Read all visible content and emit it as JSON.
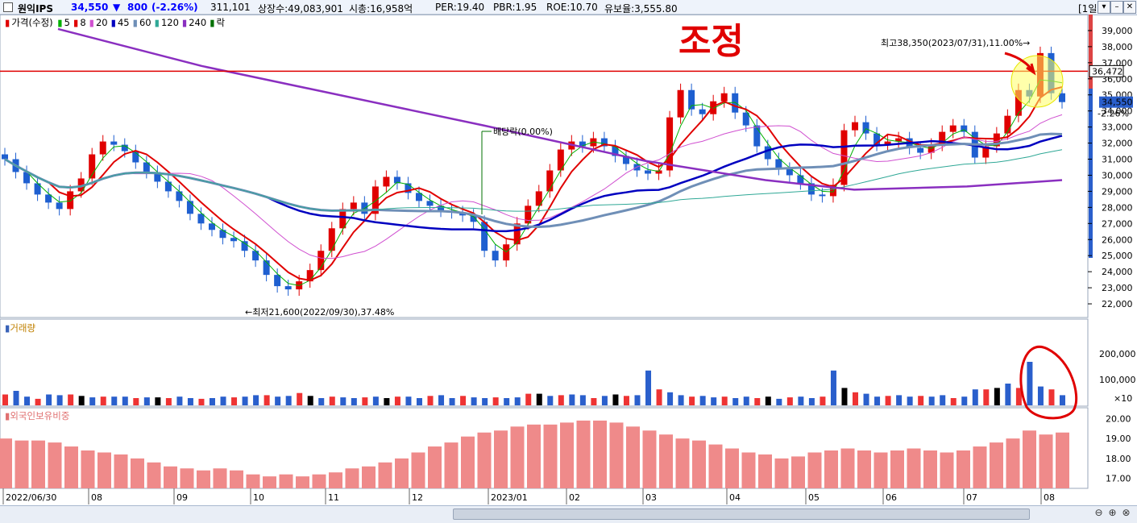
{
  "header": {
    "stock_name": "원익IPS",
    "price": "34,550",
    "change_arrow": "▼",
    "change": "800",
    "change_pct": "(-2.26%)",
    "volume": "311,101",
    "listed": "상장수:49,083,901",
    "mktcap": "시총:16,958억",
    "per": "PER:19.40",
    "pbr": "PBR:1.95",
    "roe": "ROE:10.70",
    "reserve": "유보율:3,555.80",
    "period_button": "[1일]",
    "window_buttons": [
      "▾",
      "–",
      "✕"
    ],
    "colors": {
      "down": "#0000ff",
      "up": "#e00000"
    }
  },
  "legend": {
    "price_label": "가격(수정)",
    "items": [
      {
        "label": "5",
        "color": "#00b000"
      },
      {
        "label": "8",
        "color": "#e00000"
      },
      {
        "label": "20",
        "color": "#d050d0"
      },
      {
        "label": "45",
        "color": "#0000c0"
      },
      {
        "label": "60",
        "color": "#6f8fb7"
      },
      {
        "label": "120",
        "color": "#2fa896"
      },
      {
        "label": "240",
        "color": "#8a2fc0"
      },
      {
        "label": "락",
        "color": "#007000"
      }
    ]
  },
  "annotations": {
    "handwritten": "조정",
    "high_label": "최고38,350(2023/07/31),11.00%→",
    "low_label": "←최저21,600(2022/09/30),37.48%",
    "dividend_label": "배당락(0.00%)",
    "crosshair_value": "36,472",
    "last_price": "34,550",
    "last_change": "-2.26%"
  },
  "volume_pane": {
    "title": "거래량",
    "unit": "×10",
    "ticks": [
      "200,000",
      "100,000"
    ]
  },
  "foreign_pane": {
    "title": "외국인보유비중",
    "ticks": [
      "20.00",
      "19.00",
      "18.00",
      "17.00"
    ]
  },
  "chart_data": {
    "type": "candlestick",
    "x_labels": [
      "2022/06/30",
      "08",
      "09",
      "10",
      "11",
      "12",
      "2023/01",
      "02",
      "03",
      "04",
      "05",
      "06",
      "07",
      "08"
    ],
    "y_ticks": [
      22000,
      23000,
      24000,
      25000,
      26000,
      27000,
      28000,
      29000,
      30000,
      31000,
      32000,
      33000,
      34000,
      35000,
      36000,
      37000,
      38000,
      39000
    ],
    "ylim": [
      21200,
      40000
    ],
    "closes": [
      31000,
      30200,
      29500,
      28800,
      28300,
      27900,
      29000,
      29800,
      31300,
      32100,
      31900,
      31500,
      30800,
      30200,
      29600,
      29000,
      28400,
      27600,
      27000,
      26600,
      26100,
      25900,
      25300,
      24700,
      23800,
      23100,
      22900,
      23400,
      24100,
      25300,
      26700,
      27900,
      28300,
      27600,
      29300,
      29900,
      29500,
      28900,
      28400,
      28100,
      27800,
      27700,
      27500,
      27100,
      25300,
      24700,
      25700,
      27000,
      28100,
      29000,
      30300,
      31600,
      32100,
      31800,
      32300,
      31800,
      31200,
      30700,
      30300,
      30100,
      30300,
      33600,
      35300,
      34100,
      33800,
      34600,
      35100,
      33900,
      33100,
      31800,
      31000,
      30400,
      30000,
      29500,
      28800,
      28700,
      29400,
      32800,
      33300,
      32600,
      31900,
      32100,
      32300,
      31700,
      31400,
      31900,
      32700,
      33100,
      32700,
      31100,
      31800,
      32600,
      33700,
      35300,
      34900,
      37600,
      35100,
      34550
    ],
    "volume_bars": [
      [
        1,
        15
      ],
      [
        2,
        20
      ],
      [
        3,
        12
      ],
      [
        4,
        9
      ],
      [
        5,
        15
      ],
      [
        6,
        14
      ],
      [
        7,
        15
      ],
      [
        8,
        13
      ],
      [
        9,
        11
      ],
      [
        10,
        12
      ],
      [
        11,
        12
      ],
      [
        12,
        12
      ],
      [
        13,
        10
      ],
      [
        14,
        11
      ],
      [
        15,
        11
      ],
      [
        16,
        10
      ],
      [
        17,
        12
      ],
      [
        18,
        10
      ],
      [
        19,
        9
      ],
      [
        20,
        10
      ],
      [
        21,
        12
      ],
      [
        22,
        11
      ],
      [
        23,
        12
      ],
      [
        24,
        14
      ],
      [
        25,
        14
      ],
      [
        26,
        12
      ],
      [
        27,
        13
      ],
      [
        28,
        17
      ],
      [
        29,
        13
      ],
      [
        30,
        10
      ],
      [
        31,
        12
      ],
      [
        32,
        11
      ],
      [
        33,
        10
      ],
      [
        34,
        11
      ],
      [
        35,
        12
      ],
      [
        36,
        10
      ],
      [
        37,
        12
      ],
      [
        38,
        12
      ],
      [
        39,
        10
      ],
      [
        40,
        13
      ],
      [
        41,
        14
      ],
      [
        42,
        10
      ],
      [
        43,
        13
      ],
      [
        44,
        11
      ],
      [
        45,
        10
      ],
      [
        46,
        11
      ],
      [
        47,
        10
      ],
      [
        48,
        11
      ],
      [
        49,
        16
      ],
      [
        50,
        16
      ],
      [
        51,
        13
      ],
      [
        52,
        14
      ],
      [
        53,
        15
      ],
      [
        54,
        14
      ],
      [
        55,
        10
      ],
      [
        56,
        13
      ],
      [
        57,
        15
      ],
      [
        58,
        13
      ],
      [
        59,
        14
      ],
      [
        60,
        48
      ],
      [
        61,
        22
      ],
      [
        62,
        18
      ],
      [
        63,
        14
      ],
      [
        64,
        12
      ],
      [
        65,
        13
      ],
      [
        66,
        11
      ],
      [
        67,
        12
      ],
      [
        68,
        10
      ],
      [
        69,
        12
      ],
      [
        70,
        10
      ],
      [
        71,
        12
      ],
      [
        72,
        9
      ],
      [
        73,
        11
      ],
      [
        74,
        12
      ],
      [
        75,
        10
      ],
      [
        76,
        12
      ],
      [
        77,
        48
      ],
      [
        78,
        24
      ],
      [
        79,
        18
      ],
      [
        80,
        16
      ],
      [
        81,
        12
      ],
      [
        82,
        13
      ],
      [
        83,
        14
      ],
      [
        84,
        12
      ],
      [
        85,
        13
      ],
      [
        86,
        12
      ],
      [
        87,
        14
      ],
      [
        88,
        10
      ],
      [
        89,
        12
      ],
      [
        90,
        22
      ],
      [
        91,
        22
      ],
      [
        92,
        24
      ],
      [
        93,
        30
      ],
      [
        94,
        24
      ],
      [
        95,
        60
      ],
      [
        96,
        26
      ],
      [
        97,
        22
      ],
      [
        98,
        14
      ]
    ],
    "foreign_ratio": [
      19.0,
      18.9,
      18.9,
      18.8,
      18.6,
      18.4,
      18.3,
      18.2,
      18.0,
      17.8,
      17.6,
      17.5,
      17.4,
      17.5,
      17.4,
      17.2,
      17.1,
      17.2,
      17.1,
      17.2,
      17.3,
      17.5,
      17.6,
      17.8,
      18.0,
      18.3,
      18.6,
      18.8,
      19.1,
      19.3,
      19.4,
      19.6,
      19.7,
      19.7,
      19.8,
      19.9,
      19.9,
      19.8,
      19.6,
      19.4,
      19.2,
      19.0,
      18.9,
      18.7,
      18.5,
      18.3,
      18.2,
      18.0,
      18.1,
      18.3,
      18.4,
      18.5,
      18.4,
      18.3,
      18.4,
      18.5,
      18.4,
      18.3,
      18.4,
      18.6,
      18.8,
      19.0,
      19.4,
      19.2,
      19.3
    ]
  }
}
